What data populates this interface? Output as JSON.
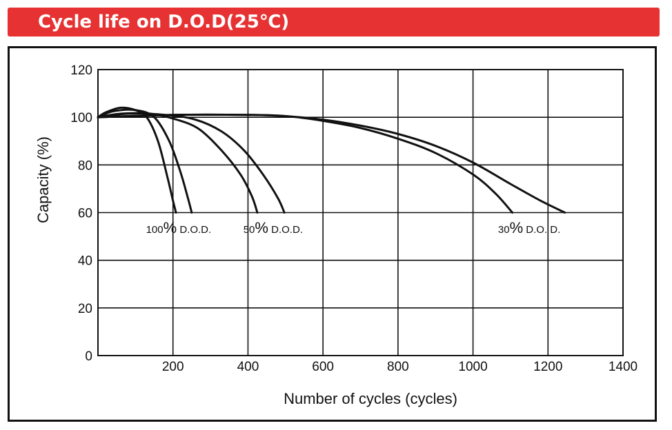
{
  "banner": {
    "title": "Cycle life on D.O.D(25℃)"
  },
  "colors": {
    "banner": "#e63232",
    "line": "#111111",
    "grid": "#111111"
  },
  "chart_data": {
    "type": "line",
    "title": "Cycle life on D.O.D(25℃)",
    "xlabel": "Number of cycles (cycles)",
    "ylabel": "Capacity (%)",
    "xlim": [
      0,
      1400
    ],
    "ylim": [
      0,
      120
    ],
    "x_ticks": [
      200,
      400,
      600,
      800,
      1000,
      1200,
      1400
    ],
    "y_ticks": [
      0,
      20,
      40,
      60,
      80,
      100,
      120
    ],
    "x_gridlines": [
      200,
      400,
      600,
      800,
      1000,
      1200
    ],
    "y_gridlines": [
      20,
      40,
      60,
      80,
      100
    ],
    "series": [
      {
        "name": "100% D.O.D. (lower)",
        "x": [
          0,
          20,
          60,
          100,
          130,
          160,
          185,
          200,
          208
        ],
        "y": [
          100,
          102,
          104,
          103,
          100,
          90,
          75,
          65,
          60
        ]
      },
      {
        "name": "100% D.O.D. (upper)",
        "x": [
          0,
          40,
          100,
          150,
          190,
          220,
          240,
          250
        ],
        "y": [
          100,
          102.5,
          103,
          100,
          90,
          77,
          66,
          60
        ]
      },
      {
        "name": "50% D.O.D. (lower)",
        "x": [
          0,
          60,
          140,
          210,
          270,
          330,
          380,
          410,
          425
        ],
        "y": [
          100,
          101.5,
          101.5,
          99,
          95,
          86,
          76,
          67,
          60
        ]
      },
      {
        "name": "50% D.O.D. (upper)",
        "x": [
          0,
          80,
          180,
          260,
          330,
          390,
          440,
          480,
          497
        ],
        "y": [
          100,
          101.5,
          101,
          99,
          94,
          86,
          76,
          66,
          60
        ]
      },
      {
        "name": "30% D.O.D. (lower)",
        "x": [
          0,
          200,
          400,
          500,
          600,
          700,
          800,
          900,
          1000,
          1060,
          1105
        ],
        "y": [
          100,
          101,
          101,
          100.5,
          98.5,
          95.5,
          91,
          85,
          76,
          68,
          60
        ]
      },
      {
        "name": "30% D.O.D. (upper)",
        "x": [
          0,
          200,
          400,
          500,
          600,
          700,
          800,
          900,
          1000,
          1100,
          1180,
          1245
        ],
        "y": [
          100,
          101,
          101,
          100.5,
          99,
          96.5,
          93,
          88,
          81,
          72,
          65,
          60
        ]
      }
    ],
    "annotations": [
      {
        "num": "100",
        "pct": "%",
        "text": "D.O.D.",
        "x": 215,
        "y": 55
      },
      {
        "num": "50",
        "pct": "%",
        "text": "D.O.D.",
        "x": 467,
        "y": 55
      },
      {
        "num": "30",
        "pct": "%",
        "text": "D.O. D.",
        "x": 1150,
        "y": 55
      }
    ]
  }
}
